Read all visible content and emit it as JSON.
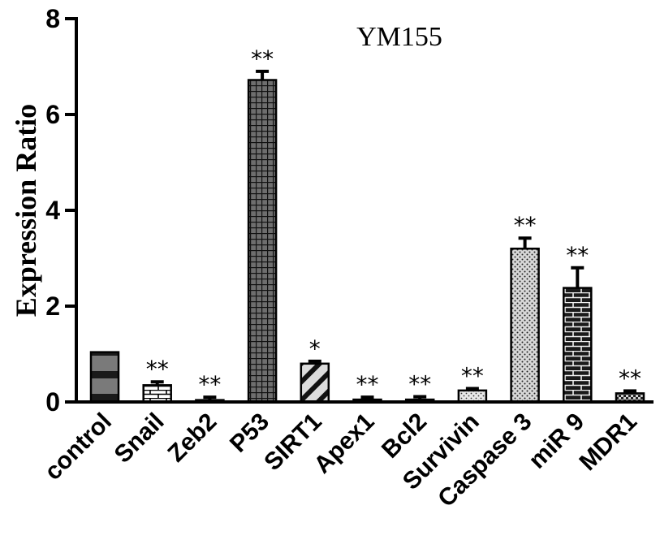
{
  "chart_data": {
    "type": "bar",
    "title": "YM155",
    "xlabel": "",
    "ylabel": "Expression Ratio",
    "ylim": [
      0,
      8
    ],
    "yticks": [
      "0",
      "2",
      "4",
      "6",
      "8"
    ],
    "categories": [
      "control",
      "Snail",
      "Zeb2",
      "P53",
      "SIRT1",
      "Apex1",
      "Bcl2",
      "Survivin",
      "Caspase 3",
      "miR 9",
      "MDR1"
    ],
    "values": [
      1.04,
      0.35,
      0.04,
      6.72,
      0.8,
      0.05,
      0.05,
      0.24,
      3.2,
      2.38,
      0.18
    ],
    "errors": [
      0.0,
      0.07,
      0.06,
      0.18,
      0.05,
      0.05,
      0.06,
      0.04,
      0.22,
      0.42,
      0.05
    ],
    "significance": [
      "",
      "**",
      "**",
      "**",
      "*",
      "**",
      "**",
      "**",
      "**",
      "**",
      "**"
    ],
    "patterns": [
      "hstripes",
      "bricks-light",
      "solid-dark",
      "grid-dark",
      "diag",
      "solid-dark",
      "solid-dark",
      "dots-light",
      "dots-dense",
      "bricks-dark",
      "checker"
    ]
  }
}
